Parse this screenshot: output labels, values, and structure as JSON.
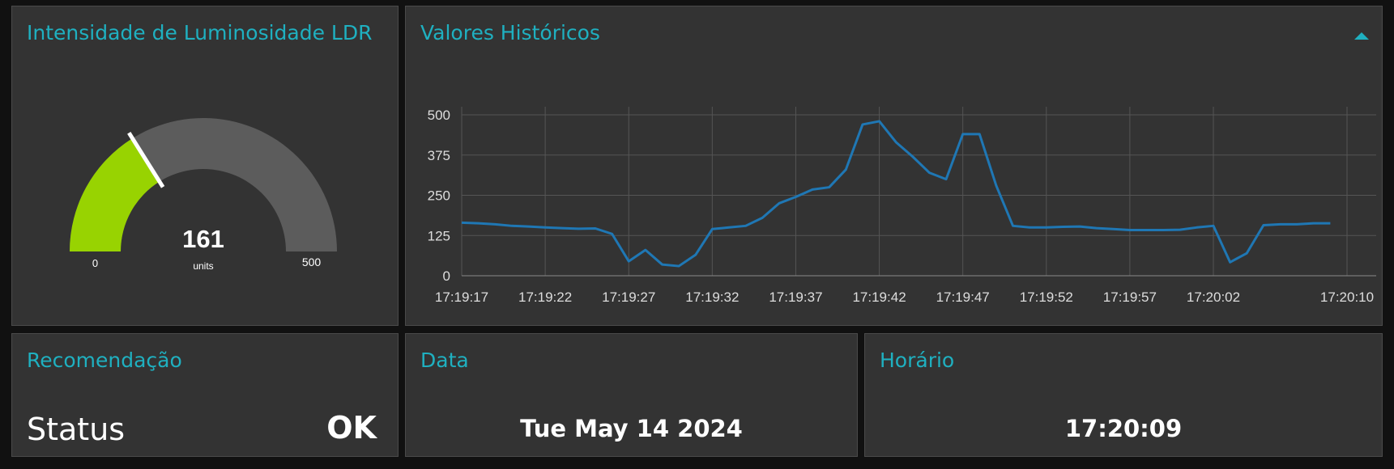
{
  "gauge": {
    "title": "Intensidade de Luminosidade LDR",
    "value": 161,
    "units": "units",
    "min": 0,
    "max": 500,
    "color": "#98d301"
  },
  "chart_data": {
    "type": "line",
    "title": "Valores Históricos",
    "x": [
      "17:19:17",
      "17:19:18",
      "17:19:19",
      "17:19:20",
      "17:19:21",
      "17:19:22",
      "17:19:23",
      "17:19:24",
      "17:19:25",
      "17:19:26",
      "17:19:27",
      "17:19:28",
      "17:19:29",
      "17:19:30",
      "17:19:31",
      "17:19:32",
      "17:19:33",
      "17:19:34",
      "17:19:35",
      "17:19:36",
      "17:19:37",
      "17:19:38",
      "17:19:39",
      "17:19:40",
      "17:19:41",
      "17:19:42",
      "17:19:43",
      "17:19:44",
      "17:19:45",
      "17:19:46",
      "17:19:47",
      "17:19:48",
      "17:19:49",
      "17:19:50",
      "17:19:51",
      "17:19:52",
      "17:19:53",
      "17:19:54",
      "17:19:55",
      "17:19:56",
      "17:19:57",
      "17:19:58",
      "17:19:59",
      "17:20:00",
      "17:20:01",
      "17:20:02",
      "17:20:03",
      "17:20:04",
      "17:20:05",
      "17:20:06",
      "17:20:07",
      "17:20:08",
      "17:20:09"
    ],
    "series": [
      {
        "color": "#1f77b4",
        "values": [
          165,
          163,
          160,
          155,
          153,
          150,
          148,
          146,
          147,
          130,
          45,
          80,
          35,
          30,
          65,
          145,
          150,
          155,
          180,
          225,
          245,
          268,
          275,
          330,
          470,
          480,
          415,
          370,
          320,
          300,
          440,
          440,
          280,
          155,
          150,
          150,
          152,
          153,
          148,
          145,
          142,
          142,
          142,
          143,
          150,
          155,
          42,
          70,
          157,
          160,
          160,
          163,
          163
        ]
      }
    ],
    "xlim": [
      "17:19:17",
      "17:20:10"
    ],
    "xticks": [
      "17:19:17",
      "17:19:22",
      "17:19:27",
      "17:19:32",
      "17:19:37",
      "17:19:42",
      "17:19:47",
      "17:19:52",
      "17:19:57",
      "17:20:02",
      "17:20:10"
    ],
    "ylim": [
      0,
      500
    ],
    "yticks": [
      0,
      125,
      250,
      375,
      500
    ],
    "grid": true
  },
  "recommendation": {
    "title": "Recomendação",
    "label": "Status",
    "value": "OK"
  },
  "date": {
    "title": "Data",
    "value": "Tue May 14 2024"
  },
  "time": {
    "title": "Horário",
    "value": "17:20:09"
  }
}
